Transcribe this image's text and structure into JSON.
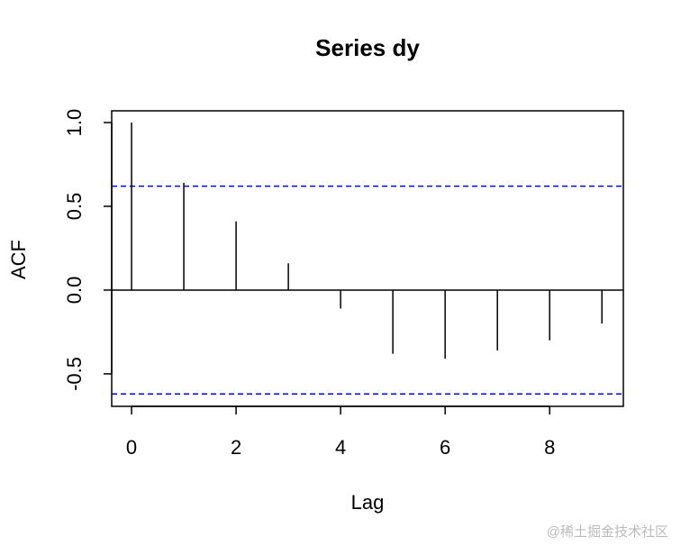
{
  "chart_data": {
    "type": "stem",
    "title": "Series  dy",
    "x_label": "Lag",
    "y_label": "ACF",
    "x": [
      0,
      1,
      2,
      3,
      4,
      5,
      6,
      7,
      8,
      9
    ],
    "values": [
      1.0,
      0.64,
      0.41,
      0.16,
      -0.11,
      -0.38,
      -0.41,
      -0.36,
      -0.3,
      -0.2
    ],
    "color": "#000000",
    "ci_upper": 0.62,
    "ci_lower": -0.62,
    "ci_color": "#0000ff",
    "xlim": [
      -0.38,
      9.41
    ],
    "xticks": [
      0,
      2,
      4,
      6,
      8
    ],
    "ylim": [
      -0.694,
      1.07
    ],
    "yticks": [
      -0.5,
      {
        "value": 0,
        "label": "0.0"
      },
      0.5,
      {
        "value": 1,
        "label": "1.0"
      }
    ],
    "grid": false
  },
  "watermark": "@稀土掘金技术社区"
}
